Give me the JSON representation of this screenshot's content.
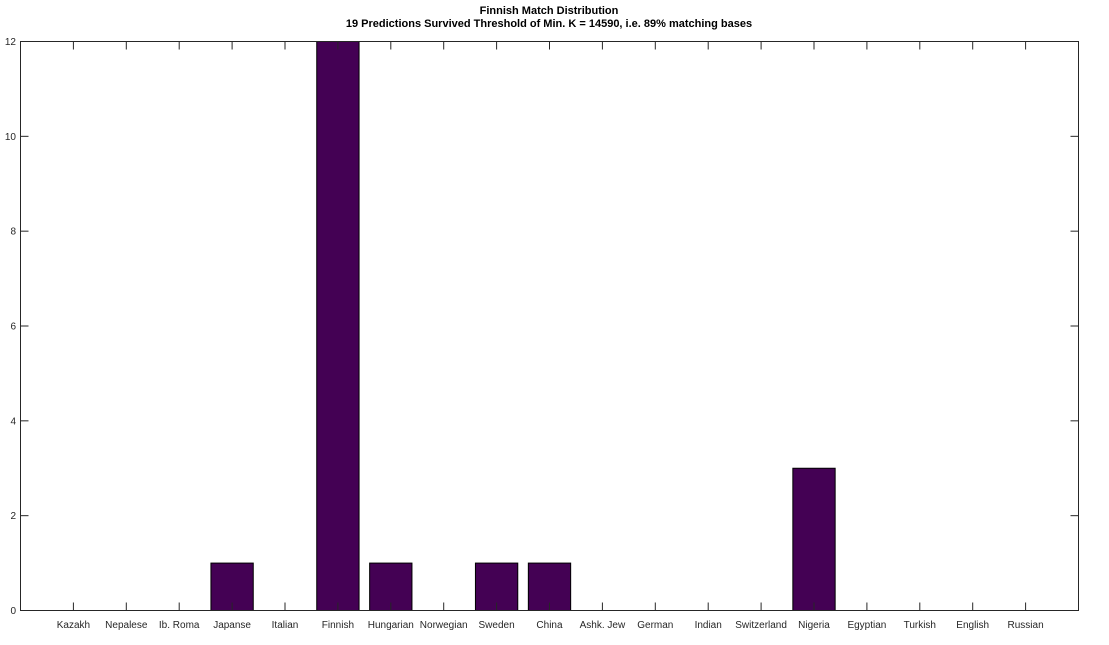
{
  "chart_data": {
    "type": "bar",
    "title": "Finnish Match Distribution",
    "subtitle": "19 Predictions Survived Threshold of Min. K = 14590, i.e. 89% matching bases",
    "categories": [
      "Kazakh",
      "Nepalese",
      "Ib. Roma",
      "Japanse",
      "Italian",
      "Finnish",
      "Hungarian",
      "Norwegian",
      "Sweden",
      "China",
      "Ashk. Jew",
      "German",
      "Indian",
      "Switzerland",
      "Nigeria",
      "Egyptian",
      "Turkish",
      "English",
      "Russian"
    ],
    "values": [
      0,
      0,
      0,
      1,
      0,
      12,
      1,
      0,
      1,
      1,
      0,
      0,
      0,
      0,
      3,
      0,
      0,
      0,
      0
    ],
    "yticks": [
      0,
      2,
      4,
      6,
      8,
      10,
      12
    ],
    "ylim": [
      0,
      12
    ],
    "bar_color": "#440154",
    "grid": false
  }
}
